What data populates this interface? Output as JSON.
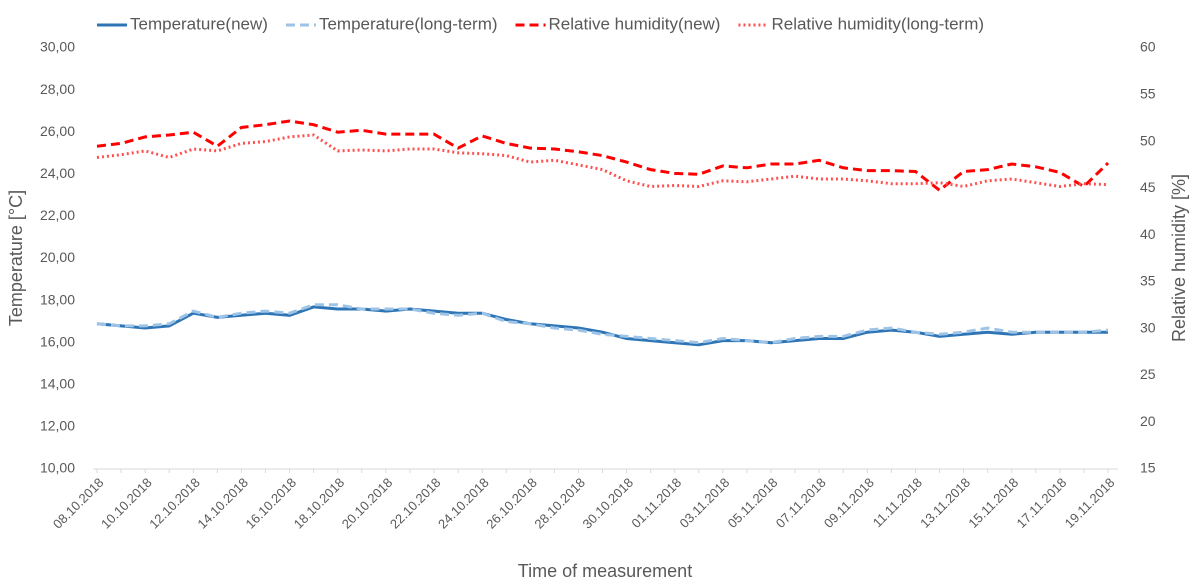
{
  "chart_data": {
    "type": "line",
    "x_label": "Time of measurement",
    "y_label": "Temperature [°C]",
    "y2_label": "Relative humidity [%]",
    "categories": [
      "08.10.2018",
      null,
      "10.10.2018",
      null,
      "12.10.2018",
      null,
      "14.10.2018",
      null,
      "16.10.2018",
      null,
      "18.10.2018",
      null,
      "20.10.2018",
      null,
      "22.10.2018",
      null,
      "24.10.2018",
      null,
      "26.10.2018",
      null,
      "28.10.2018",
      null,
      "30.10.2018",
      null,
      "01.11.2018",
      null,
      "03.11.2018",
      null,
      "05.11.2018",
      null,
      "07.11.2018",
      null,
      "09.11.2018",
      null,
      "11.11.2018",
      null,
      "13.11.2018",
      null,
      "15.11.2018",
      null,
      "17.11.2018",
      null,
      "19.11.2018"
    ],
    "series": [
      {
        "name": "Temperature(new)",
        "color": "#2e75b6",
        "dash": "solid",
        "axis": "y",
        "values": [
          16.9,
          16.8,
          16.7,
          16.8,
          17.4,
          17.2,
          17.3,
          17.4,
          17.3,
          17.7,
          17.6,
          17.6,
          17.5,
          17.6,
          17.5,
          17.4,
          17.4,
          17.1,
          16.9,
          16.8,
          16.7,
          16.5,
          16.2,
          16.1,
          16.0,
          15.9,
          16.1,
          16.1,
          16.0,
          16.1,
          16.2,
          16.2,
          16.5,
          16.6,
          16.5,
          16.3,
          16.4,
          16.5,
          16.4,
          16.5,
          16.5,
          16.5,
          16.5
        ]
      },
      {
        "name": "Temperature(long-term)",
        "color": "#9dc3e6",
        "dash": "dashed",
        "axis": "y",
        "values": [
          16.9,
          16.8,
          16.8,
          16.9,
          17.5,
          17.2,
          17.4,
          17.5,
          17.4,
          17.8,
          17.8,
          17.6,
          17.6,
          17.6,
          17.4,
          17.3,
          17.4,
          17.0,
          16.9,
          16.7,
          16.6,
          16.4,
          16.3,
          16.2,
          16.1,
          16.0,
          16.2,
          16.1,
          16.0,
          16.2,
          16.3,
          16.3,
          16.6,
          16.7,
          16.5,
          16.4,
          16.5,
          16.7,
          16.5,
          16.5,
          16.5,
          16.5,
          16.6
        ]
      },
      {
        "name": "Relative humidity(new)",
        "color": "#ff0000",
        "dash": "dashed",
        "axis": "y2",
        "values": [
          49.5,
          49.8,
          50.5,
          50.7,
          51.0,
          49.5,
          51.5,
          51.8,
          52.2,
          51.8,
          51.0,
          51.2,
          50.8,
          50.8,
          50.8,
          49.3,
          50.6,
          49.8,
          49.3,
          49.2,
          48.9,
          48.5,
          47.8,
          47.0,
          46.6,
          46.5,
          47.4,
          47.2,
          47.6,
          47.6,
          48.0,
          47.2,
          46.9,
          46.9,
          46.8,
          44.8,
          46.8,
          47.0,
          47.6,
          47.3,
          46.7,
          45.2,
          47.7
        ]
      },
      {
        "name": "Relative humidity(long-term)",
        "color": "#ff5050",
        "dash": "dotted",
        "axis": "y2",
        "values": [
          48.3,
          48.6,
          49.0,
          48.3,
          49.2,
          49.0,
          49.8,
          50.0,
          50.5,
          50.7,
          49.0,
          49.1,
          49.0,
          49.2,
          49.2,
          48.8,
          48.7,
          48.5,
          47.8,
          48.0,
          47.5,
          47.0,
          45.8,
          45.2,
          45.3,
          45.2,
          45.8,
          45.7,
          46.0,
          46.3,
          46.0,
          46.0,
          45.8,
          45.5,
          45.5,
          45.6,
          45.2,
          45.8,
          46.0,
          45.6,
          45.2,
          45.5,
          45.4
        ]
      }
    ],
    "ylim": [
      10,
      30
    ],
    "yticks": [
      {
        "value": 10,
        "label": "10,00"
      },
      {
        "value": 12,
        "label": "12,00"
      },
      {
        "value": 14,
        "label": "14,00"
      },
      {
        "value": 16,
        "label": "16,00"
      },
      {
        "value": 18,
        "label": "18,00"
      },
      {
        "value": 20,
        "label": "20,00"
      },
      {
        "value": 22,
        "label": "22,00"
      },
      {
        "value": 24,
        "label": "24,00"
      },
      {
        "value": 26,
        "label": "26,00"
      },
      {
        "value": 28,
        "label": "28,00"
      },
      {
        "value": 30,
        "label": "30,00"
      }
    ],
    "y2lim": [
      15,
      60
    ],
    "y2ticks": [
      15,
      20,
      25,
      30,
      35,
      40,
      45,
      50,
      55,
      60
    ],
    "grid": false,
    "legend": "top"
  }
}
